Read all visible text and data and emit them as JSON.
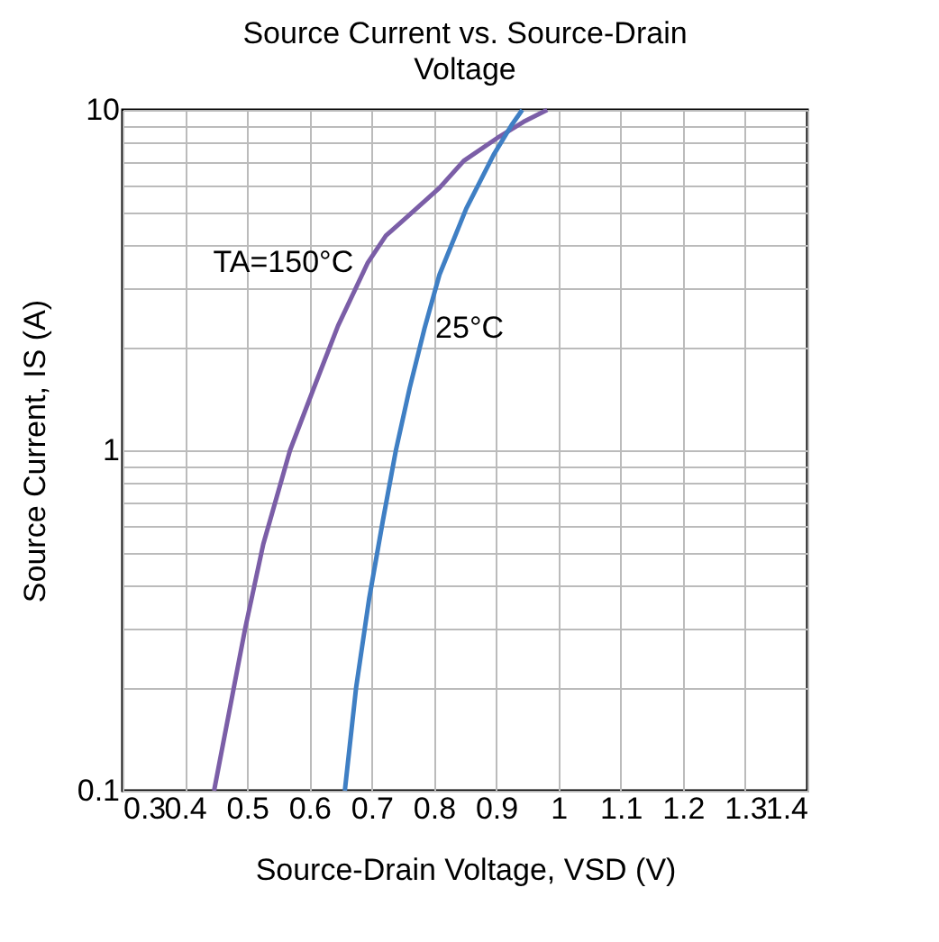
{
  "chart_data": {
    "type": "line",
    "title": "Source Current vs. Source-Drain Voltage",
    "xlabel": "Source-Drain Voltage, VSD (V)",
    "ylabel": "Source Current, IS (A)",
    "series": [
      {
        "color": "#7b5ea7",
        "x": [
          0.447,
          0.497,
          0.526,
          0.569,
          0.607,
          0.646,
          0.694,
          0.723,
          0.761,
          0.809,
          0.848,
          0.905,
          0.944,
          0.982
        ],
        "values": [
          0.1,
          0.3,
          0.53,
          1,
          1.52,
          2.32,
          3.56,
          4.27,
          4.92,
          5.9,
          7.08,
          8.34,
          9.22,
          10
        ]
      },
      {
        "color": "#3f7fc4",
        "x": [
          0.657,
          0.675,
          0.696,
          0.718,
          0.739,
          0.761,
          0.785,
          0.809,
          0.852,
          0.896,
          0.925,
          0.942
        ],
        "values": [
          0.1,
          0.2,
          0.366,
          0.62,
          1,
          1.52,
          2.28,
          3.28,
          5.13,
          7.38,
          9.03,
          10
        ]
      }
    ],
    "annotations": [
      "TA=150°C",
      "25°C"
    ],
    "xlim": [
      0.3,
      1.4
    ],
    "xticks": [
      0.3,
      0.4,
      0.5,
      0.6,
      0.7,
      0.8,
      0.9,
      1,
      1.1,
      1.2,
      1.3,
      1.4
    ],
    "ylim": [
      0.1,
      10
    ],
    "yticks": [
      0.1,
      {
        "value": 0.2,
        "label": null
      },
      {
        "value": 0.3,
        "label": null
      },
      {
        "value": 0.4,
        "label": null
      },
      {
        "value": 0.5,
        "label": null
      },
      {
        "value": 0.6,
        "label": null
      },
      {
        "value": 0.7,
        "label": null
      },
      {
        "value": 0.8,
        "label": null
      },
      {
        "value": 0.9,
        "label": null
      },
      1,
      {
        "value": 2,
        "label": null
      },
      {
        "value": 3,
        "label": null
      },
      {
        "value": 4,
        "label": null
      },
      {
        "value": 5,
        "label": null
      },
      {
        "value": 6,
        "label": null
      },
      {
        "value": 7,
        "label": null
      },
      {
        "value": 8,
        "label": null
      },
      {
        "value": 9,
        "label": null
      },
      10
    ],
    "log": true,
    "grid": true,
    "marker": "none",
    "line_style": "solid"
  }
}
